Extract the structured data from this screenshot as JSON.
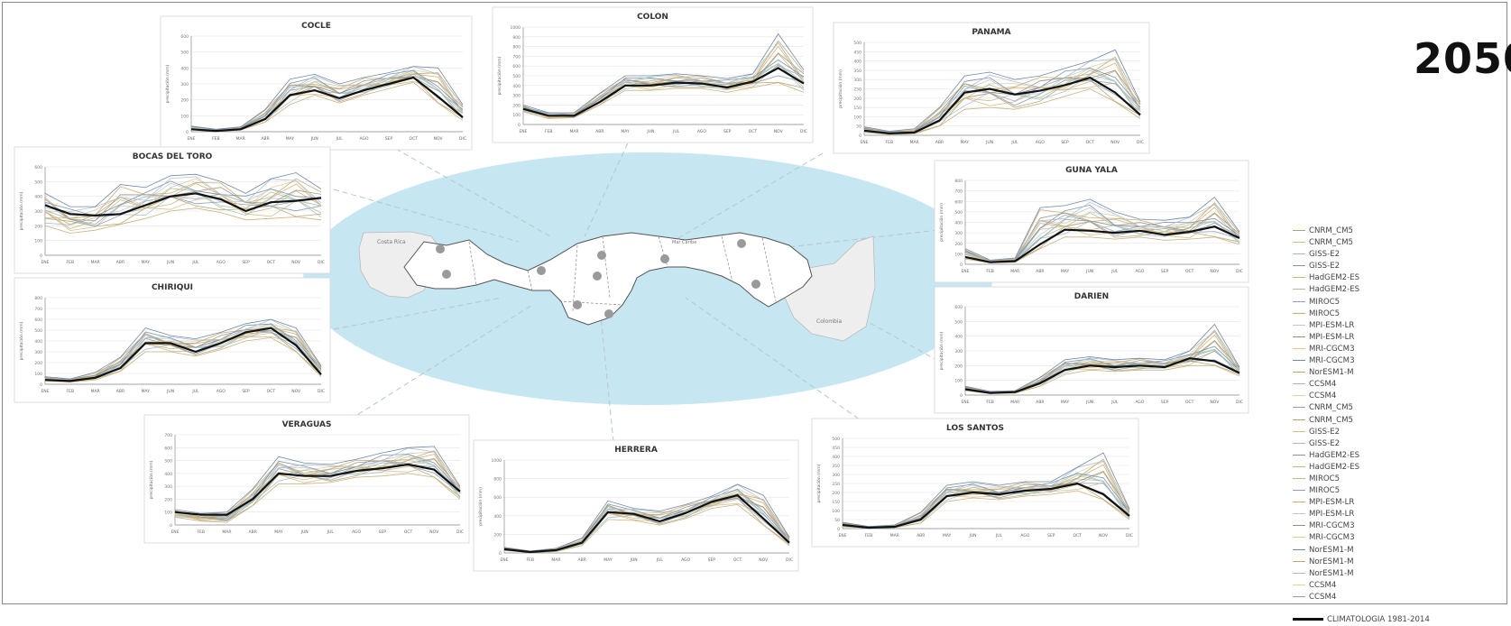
{
  "year_label": "2050",
  "map_labels": {
    "left_country": "Costa Rica",
    "right_country": "Colombia",
    "sea": "Mar Caribe"
  },
  "months": [
    "ENE",
    "FEB",
    "MAR",
    "ABR",
    "MAY",
    "JUN",
    "JUL",
    "AGO",
    "SEP",
    "OCT",
    "NOV",
    "DIC"
  ],
  "legend": {
    "models": [
      "CNRM_CM5",
      "CNRM_CM5",
      "GISS-E2",
      "GISS-E2",
      "HadGEM2-ES",
      "HadGEM2-ES",
      "MIROC5",
      "MIROC5",
      "MPI-ESM-LR",
      "MPI-ESM-LR",
      "MRI-CGCM3",
      "MRI-CGCM3",
      "NorESM1-M",
      "CCSM4",
      "CCSM4",
      "CNRM_CM5",
      "CNRM_CM5",
      "GISS-E2",
      "GISS-E2",
      "HadGEM2-ES",
      "HadGEM2-ES",
      "MIROC5",
      "MIROC5",
      "MPI-ESM-LR",
      "MPI-ESM-LR",
      "MRI-CGCM3",
      "MRI-CGCM3",
      "NorESM1-M",
      "NorESM1-M",
      "NorESM1-M",
      "CCSM4",
      "CCSM4"
    ],
    "climatology": "CLIMATOLOGIA 1981-2014"
  },
  "colors": {
    "ellipse": "#c6e6f1",
    "climatology": "#111111",
    "models": [
      "#b8a06a",
      "#d2b98a",
      "#9fbcd2",
      "#7e98b0",
      "#c9b37d",
      "#a8c18f",
      "#8aa0b8",
      "#cda96e",
      "#b4c8d8",
      "#9a8f72",
      "#d8c9a0",
      "#6f8aa6",
      "#c2a46e",
      "#a9b9c9",
      "#e0cfa2",
      "#93a1ad"
    ]
  },
  "chart_data": [
    {
      "type": "line",
      "title": "COCLE",
      "ylabel": "precipitación (mm)",
      "ylim": [
        0,
        600
      ],
      "yticks": [
        0,
        100,
        200,
        300,
        400,
        500,
        600
      ],
      "climatology": [
        15,
        5,
        15,
        80,
        230,
        260,
        210,
        260,
        300,
        340,
        220,
        90
      ],
      "models_min": [
        20,
        3,
        10,
        60,
        170,
        230,
        180,
        230,
        270,
        310,
        180,
        70
      ],
      "models_max": [
        35,
        15,
        30,
        140,
        330,
        360,
        300,
        340,
        370,
        410,
        400,
        170
      ]
    },
    {
      "type": "line",
      "title": "COLON",
      "ylabel": "precipitación (mm)",
      "ylim": [
        0,
        1000
      ],
      "yticks": [
        0,
        100,
        200,
        300,
        400,
        500,
        600,
        700,
        800,
        900,
        1000
      ],
      "climatology": [
        160,
        90,
        90,
        230,
        400,
        400,
        430,
        420,
        380,
        440,
        580,
        420
      ],
      "models_min": [
        130,
        60,
        70,
        200,
        350,
        350,
        370,
        370,
        330,
        380,
        430,
        330
      ],
      "models_max": [
        200,
        120,
        120,
        320,
        500,
        500,
        520,
        500,
        470,
        520,
        930,
        560
      ]
    },
    {
      "type": "line",
      "title": "PANAMA",
      "ylabel": "precipitación (mm)",
      "ylim": [
        0,
        500
      ],
      "yticks": [
        0,
        50,
        100,
        150,
        200,
        250,
        300,
        350,
        400,
        450,
        500
      ],
      "climatology": [
        25,
        10,
        15,
        80,
        230,
        250,
        220,
        240,
        270,
        310,
        230,
        110
      ],
      "models_min": [
        15,
        5,
        8,
        50,
        140,
        150,
        140,
        170,
        210,
        250,
        180,
        90
      ],
      "models_max": [
        45,
        22,
        35,
        150,
        320,
        340,
        300,
        320,
        360,
        400,
        460,
        180
      ]
    },
    {
      "type": "line",
      "title": "BOCAS DEL TORO",
      "ylabel": "precipitación (mm)",
      "ylim": [
        0,
        600
      ],
      "yticks": [
        0,
        100,
        200,
        300,
        400,
        500,
        600
      ],
      "climatology": [
        340,
        280,
        270,
        280,
        340,
        400,
        420,
        380,
        300,
        360,
        370,
        390
      ],
      "models_min": [
        200,
        150,
        170,
        210,
        250,
        300,
        320,
        290,
        240,
        250,
        260,
        240
      ],
      "models_max": [
        420,
        330,
        330,
        480,
        460,
        540,
        550,
        500,
        420,
        520,
        560,
        450
      ]
    },
    {
      "type": "line",
      "title": "GUNA YALA",
      "ylabel": "precipitación (mm)",
      "ylim": [
        0,
        800
      ],
      "yticks": [
        0,
        100,
        200,
        300,
        400,
        500,
        600,
        700,
        800
      ],
      "climatology": [
        70,
        20,
        30,
        190,
        330,
        320,
        300,
        320,
        280,
        310,
        360,
        250
      ],
      "models_min": [
        50,
        15,
        20,
        150,
        260,
        260,
        240,
        260,
        230,
        240,
        260,
        190
      ],
      "models_max": [
        150,
        40,
        60,
        540,
        560,
        620,
        500,
        430,
        420,
        450,
        640,
        310
      ]
    },
    {
      "type": "line",
      "title": "CHIRIQUI",
      "ylabel": "precipitación (mm)",
      "ylim": [
        0,
        800
      ],
      "yticks": [
        0,
        100,
        200,
        300,
        400,
        500,
        600,
        700,
        800
      ],
      "climatology": [
        40,
        30,
        60,
        150,
        380,
        380,
        300,
        380,
        480,
        520,
        360,
        90
      ],
      "models_min": [
        30,
        20,
        40,
        120,
        300,
        300,
        260,
        320,
        400,
        430,
        300,
        70
      ],
      "models_max": [
        70,
        50,
        110,
        250,
        520,
        450,
        420,
        480,
        560,
        600,
        520,
        170
      ]
    },
    {
      "type": "line",
      "title": "DARIEN",
      "ylabel": "precipitación (mm)",
      "ylim": [
        0,
        600
      ],
      "yticks": [
        0,
        100,
        200,
        300,
        400,
        500,
        600
      ],
      "climatology": [
        40,
        15,
        20,
        80,
        170,
        200,
        190,
        200,
        190,
        250,
        230,
        150
      ],
      "models_min": [
        30,
        10,
        12,
        60,
        140,
        170,
        160,
        170,
        170,
        200,
        200,
        130
      ],
      "models_max": [
        60,
        25,
        30,
        120,
        240,
        260,
        240,
        250,
        240,
        300,
        480,
        190
      ]
    },
    {
      "type": "line",
      "title": "VERAGUAS",
      "ylabel": "precipitación (mm)",
      "ylim": [
        0,
        700
      ],
      "yticks": [
        0,
        100,
        200,
        300,
        400,
        500,
        600,
        700
      ],
      "climatology": [
        100,
        80,
        80,
        200,
        400,
        380,
        380,
        420,
        440,
        470,
        430,
        260
      ],
      "models_min": [
        60,
        30,
        20,
        150,
        320,
        320,
        330,
        370,
        380,
        400,
        370,
        200
      ],
      "models_max": [
        120,
        90,
        100,
        280,
        530,
        480,
        470,
        510,
        560,
        600,
        610,
        300
      ]
    },
    {
      "type": "line",
      "title": "HERRERA",
      "ylabel": "precipitación (mm)",
      "ylim": [
        0,
        1000
      ],
      "yticks": [
        0,
        200,
        400,
        600,
        800,
        1000
      ],
      "climatology": [
        40,
        10,
        30,
        110,
        440,
        420,
        340,
        430,
        550,
        620,
        370,
        110
      ],
      "models_min": [
        25,
        5,
        15,
        80,
        360,
        350,
        300,
        370,
        480,
        520,
        300,
        80
      ],
      "models_max": [
        60,
        20,
        50,
        160,
        560,
        480,
        450,
        520,
        610,
        740,
        620,
        170
      ]
    },
    {
      "type": "line",
      "title": "LOS SANTOS",
      "ylabel": "precipitación (mm)",
      "ylim": [
        0,
        500
      ],
      "yticks": [
        0,
        50,
        100,
        150,
        200,
        250,
        300,
        350,
        400,
        450,
        500
      ],
      "climatology": [
        20,
        5,
        10,
        50,
        180,
        200,
        190,
        210,
        220,
        250,
        190,
        70
      ],
      "models_min": [
        10,
        3,
        5,
        30,
        150,
        170,
        160,
        180,
        190,
        210,
        160,
        50
      ],
      "models_max": [
        35,
        12,
        20,
        90,
        240,
        260,
        240,
        260,
        260,
        340,
        420,
        110
      ]
    }
  ]
}
